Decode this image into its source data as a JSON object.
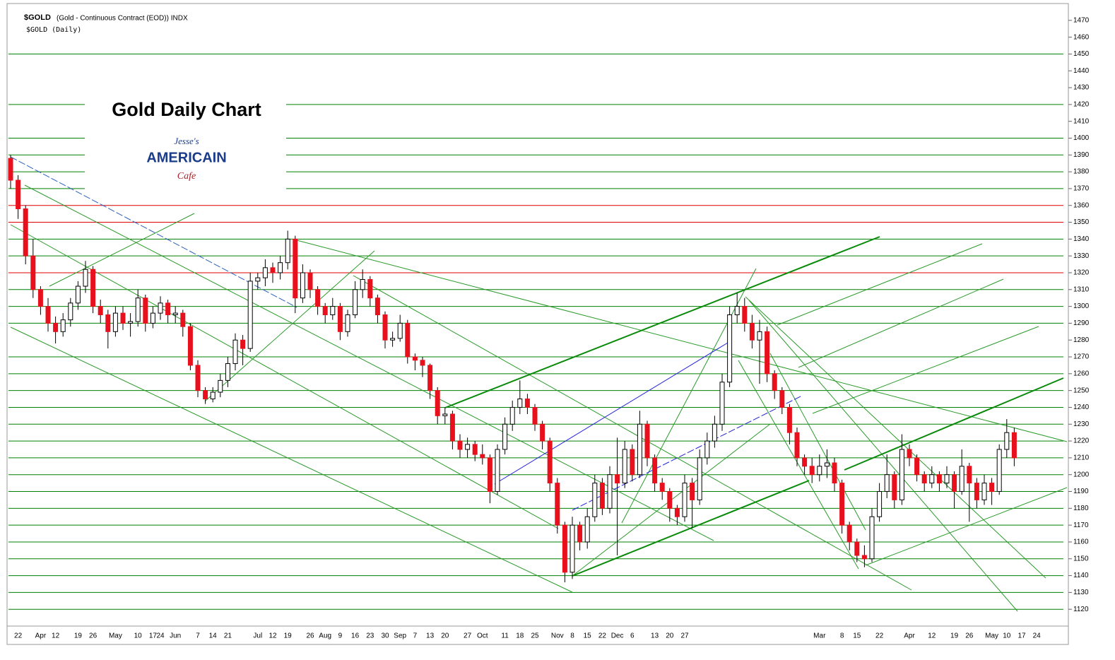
{
  "chart_data": {
    "type": "candlestick",
    "header": "$GOLD",
    "header_detail": "(Gold - Continuous Contract (EOD)) INDX",
    "subtitle": "$GOLD (Daily)",
    "title": "Gold Daily Chart",
    "logo": {
      "line1": "Jesse's",
      "line2": "AMERICAIN",
      "line3": "Cafe"
    },
    "ylim": [
      1110,
      1480
    ],
    "yticks": [
      1120,
      1130,
      1140,
      1150,
      1160,
      1170,
      1180,
      1190,
      1200,
      1210,
      1220,
      1230,
      1240,
      1250,
      1260,
      1270,
      1280,
      1290,
      1300,
      1310,
      1320,
      1330,
      1340,
      1350,
      1360,
      1370,
      1380,
      1390,
      1400,
      1410,
      1420,
      1430,
      1440,
      1450,
      1460,
      1470
    ],
    "levels": [
      1450,
      1420,
      1400,
      1390,
      1380,
      1370,
      1340,
      1330,
      1310,
      1300,
      1290,
      1270,
      1260,
      1250,
      1240,
      1230,
      1220,
      1210,
      1200,
      1190,
      1180,
      1170,
      1160,
      1150,
      1140,
      1130,
      1120
    ],
    "level_color": "#008000",
    "red_levels": [
      1360,
      1350,
      1320
    ],
    "red_color": "#e00000",
    "up_color": "#ffffff",
    "down_color": "#e8101c",
    "categories": [
      null,
      "22",
      null,
      null,
      "Apr",
      null,
      "12",
      null,
      null,
      "19",
      null,
      "26",
      null,
      null,
      "May",
      null,
      null,
      "10",
      null,
      "17",
      "24",
      null,
      "Jun",
      null,
      null,
      "7",
      null,
      "14",
      null,
      "21",
      null,
      null,
      null,
      "Jul",
      null,
      "12",
      null,
      "19",
      null,
      null,
      "26",
      null,
      "Aug",
      null,
      "9",
      null,
      "16",
      null,
      "23",
      null,
      "30",
      null,
      "Sep",
      null,
      "7",
      null,
      "13",
      null,
      "20",
      null,
      null,
      "27",
      null,
      "Oct",
      null,
      null,
      "11",
      null,
      "18",
      null,
      "25",
      null,
      null,
      "Nov",
      null,
      "8",
      null,
      "15",
      null,
      "22",
      null,
      "Dec",
      null,
      "6",
      null,
      null,
      "13",
      null,
      "20",
      null,
      "27",
      null,
      null,
      null,
      null,
      null,
      null,
      null,
      null,
      null,
      null,
      null,
      null,
      null,
      null,
      null,
      null,
      null,
      "Mar",
      null,
      null,
      "8",
      null,
      "15",
      null,
      null,
      "22",
      null,
      null,
      null,
      "Apr",
      null,
      null,
      "12",
      null,
      null,
      "19",
      null,
      "26",
      null,
      null,
      "May",
      null,
      "10",
      null,
      "17",
      null,
      "24"
    ],
    "candles": [
      [
        1388,
        1390,
        1370,
        1375
      ],
      [
        1375,
        1378,
        1352,
        1358
      ],
      [
        1358,
        1360,
        1325,
        1330
      ],
      [
        1330,
        1340,
        1305,
        1310
      ],
      [
        1310,
        1312,
        1295,
        1300
      ],
      [
        1300,
        1305,
        1285,
        1290
      ],
      [
        1290,
        1294,
        1278,
        1285
      ],
      [
        1285,
        1296,
        1282,
        1292
      ],
      [
        1292,
        1305,
        1288,
        1302
      ],
      [
        1302,
        1315,
        1298,
        1312
      ],
      [
        1312,
        1327,
        1308,
        1322
      ],
      [
        1322,
        1324,
        1296,
        1300
      ],
      [
        1300,
        1304,
        1290,
        1295
      ],
      [
        1295,
        1298,
        1275,
        1285
      ],
      [
        1285,
        1300,
        1282,
        1296
      ],
      [
        1296,
        1300,
        1286,
        1290
      ],
      [
        1290,
        1296,
        1282,
        1291
      ],
      [
        1291,
        1310,
        1288,
        1305
      ],
      [
        1305,
        1307,
        1285,
        1290
      ],
      [
        1290,
        1300,
        1287,
        1296
      ],
      [
        1296,
        1306,
        1292,
        1302
      ],
      [
        1302,
        1304,
        1290,
        1295
      ],
      [
        1295,
        1300,
        1290,
        1296
      ],
      [
        1296,
        1298,
        1282,
        1288
      ],
      [
        1288,
        1290,
        1262,
        1265
      ],
      [
        1265,
        1268,
        1246,
        1250
      ],
      [
        1250,
        1252,
        1242,
        1245
      ],
      [
        1245,
        1252,
        1243,
        1249
      ],
      [
        1249,
        1260,
        1246,
        1256
      ],
      [
        1256,
        1270,
        1252,
        1266
      ],
      [
        1266,
        1284,
        1262,
        1280
      ],
      [
        1280,
        1283,
        1265,
        1275
      ],
      [
        1275,
        1320,
        1273,
        1315
      ],
      [
        1315,
        1320,
        1310,
        1317
      ],
      [
        1317,
        1328,
        1312,
        1323
      ],
      [
        1323,
        1326,
        1314,
        1320
      ],
      [
        1320,
        1330,
        1316,
        1326
      ],
      [
        1326,
        1345,
        1322,
        1340
      ],
      [
        1340,
        1342,
        1296,
        1305
      ],
      [
        1305,
        1325,
        1302,
        1320
      ],
      [
        1320,
        1322,
        1305,
        1310
      ],
      [
        1310,
        1312,
        1295,
        1300
      ],
      [
        1300,
        1302,
        1290,
        1295
      ],
      [
        1295,
        1305,
        1292,
        1300
      ],
      [
        1300,
        1302,
        1280,
        1285
      ],
      [
        1285,
        1298,
        1282,
        1295
      ],
      [
        1295,
        1315,
        1293,
        1310
      ],
      [
        1310,
        1322,
        1305,
        1316
      ],
      [
        1316,
        1318,
        1300,
        1305
      ],
      [
        1305,
        1307,
        1290,
        1295
      ],
      [
        1295,
        1297,
        1275,
        1280
      ],
      [
        1280,
        1285,
        1276,
        1281
      ],
      [
        1281,
        1295,
        1279,
        1290
      ],
      [
        1290,
        1292,
        1266,
        1270
      ],
      [
        1270,
        1272,
        1262,
        1268
      ],
      [
        1268,
        1270,
        1258,
        1265
      ],
      [
        1265,
        1266,
        1245,
        1250
      ],
      [
        1250,
        1252,
        1230,
        1235
      ],
      [
        1235,
        1240,
        1230,
        1236
      ],
      [
        1236,
        1238,
        1215,
        1220
      ],
      [
        1220,
        1224,
        1210,
        1215
      ],
      [
        1215,
        1222,
        1210,
        1218
      ],
      [
        1218,
        1220,
        1208,
        1212
      ],
      [
        1212,
        1218,
        1206,
        1210
      ],
      [
        1210,
        1212,
        1183,
        1190
      ],
      [
        1190,
        1218,
        1188,
        1215
      ],
      [
        1215,
        1234,
        1212,
        1230
      ],
      [
        1230,
        1244,
        1226,
        1240
      ],
      [
        1240,
        1256,
        1236,
        1245
      ],
      [
        1245,
        1248,
        1236,
        1240
      ],
      [
        1240,
        1242,
        1226,
        1230
      ],
      [
        1230,
        1232,
        1215,
        1220
      ],
      [
        1220,
        1222,
        1190,
        1195
      ],
      [
        1195,
        1198,
        1165,
        1170
      ],
      [
        1170,
        1172,
        1136,
        1142
      ],
      [
        1142,
        1175,
        1138,
        1170
      ],
      [
        1170,
        1172,
        1155,
        1160
      ],
      [
        1160,
        1180,
        1156,
        1175
      ],
      [
        1175,
        1200,
        1172,
        1195
      ],
      [
        1195,
        1198,
        1176,
        1180
      ],
      [
        1180,
        1205,
        1177,
        1200
      ],
      [
        1200,
        1222,
        1152,
        1195
      ],
      [
        1195,
        1220,
        1192,
        1215
      ],
      [
        1215,
        1218,
        1196,
        1200
      ],
      [
        1200,
        1238,
        1198,
        1230
      ],
      [
        1230,
        1232,
        1205,
        1210
      ],
      [
        1210,
        1212,
        1190,
        1195
      ],
      [
        1195,
        1198,
        1185,
        1190
      ],
      [
        1190,
        1192,
        1172,
        1180
      ],
      [
        1180,
        1182,
        1170,
        1175
      ],
      [
        1175,
        1200,
        1172,
        1195
      ],
      [
        1195,
        1198,
        1168,
        1185
      ],
      [
        1185,
        1215,
        1182,
        1210
      ],
      [
        1210,
        1225,
        1206,
        1220
      ],
      [
        1220,
        1235,
        1216,
        1230
      ],
      [
        1230,
        1260,
        1226,
        1255
      ],
      [
        1255,
        1300,
        1252,
        1295
      ],
      [
        1295,
        1308,
        1290,
        1300
      ],
      [
        1300,
        1305,
        1285,
        1290
      ],
      [
        1290,
        1295,
        1275,
        1280
      ],
      [
        1280,
        1292,
        1254,
        1285
      ],
      [
        1285,
        1288,
        1255,
        1260
      ],
      [
        1260,
        1262,
        1245,
        1250
      ],
      [
        1250,
        1252,
        1236,
        1240
      ],
      [
        1240,
        1242,
        1218,
        1225
      ],
      [
        1225,
        1228,
        1205,
        1210
      ],
      [
        1210,
        1212,
        1200,
        1205
      ],
      [
        1205,
        1210,
        1195,
        1200
      ],
      [
        1200,
        1212,
        1196,
        1205
      ],
      [
        1205,
        1215,
        1198,
        1207
      ],
      [
        1207,
        1210,
        1190,
        1195
      ],
      [
        1195,
        1197,
        1165,
        1170
      ],
      [
        1170,
        1172,
        1155,
        1160
      ],
      [
        1160,
        1162,
        1148,
        1152
      ],
      [
        1152,
        1158,
        1145,
        1150
      ],
      [
        1150,
        1180,
        1148,
        1175
      ],
      [
        1175,
        1195,
        1172,
        1190
      ],
      [
        1190,
        1212,
        1186,
        1200
      ],
      [
        1200,
        1202,
        1180,
        1185
      ],
      [
        1185,
        1224,
        1182,
        1215
      ],
      [
        1215,
        1218,
        1205,
        1210
      ],
      [
        1210,
        1212,
        1196,
        1200
      ],
      [
        1200,
        1202,
        1190,
        1195
      ],
      [
        1195,
        1205,
        1192,
        1200
      ],
      [
        1200,
        1202,
        1190,
        1195
      ],
      [
        1195,
        1205,
        1192,
        1200
      ],
      [
        1200,
        1202,
        1180,
        1190
      ],
      [
        1190,
        1215,
        1188,
        1205
      ],
      [
        1205,
        1207,
        1172,
        1195
      ],
      [
        1195,
        1198,
        1180,
        1185
      ],
      [
        1185,
        1200,
        1182,
        1195
      ],
      [
        1195,
        1198,
        1182,
        1190
      ],
      [
        1190,
        1218,
        1188,
        1215
      ],
      [
        1215,
        1233,
        1210,
        1225
      ],
      [
        1225,
        1228,
        1205,
        1210
      ],
      null,
      null,
      null
    ]
  }
}
